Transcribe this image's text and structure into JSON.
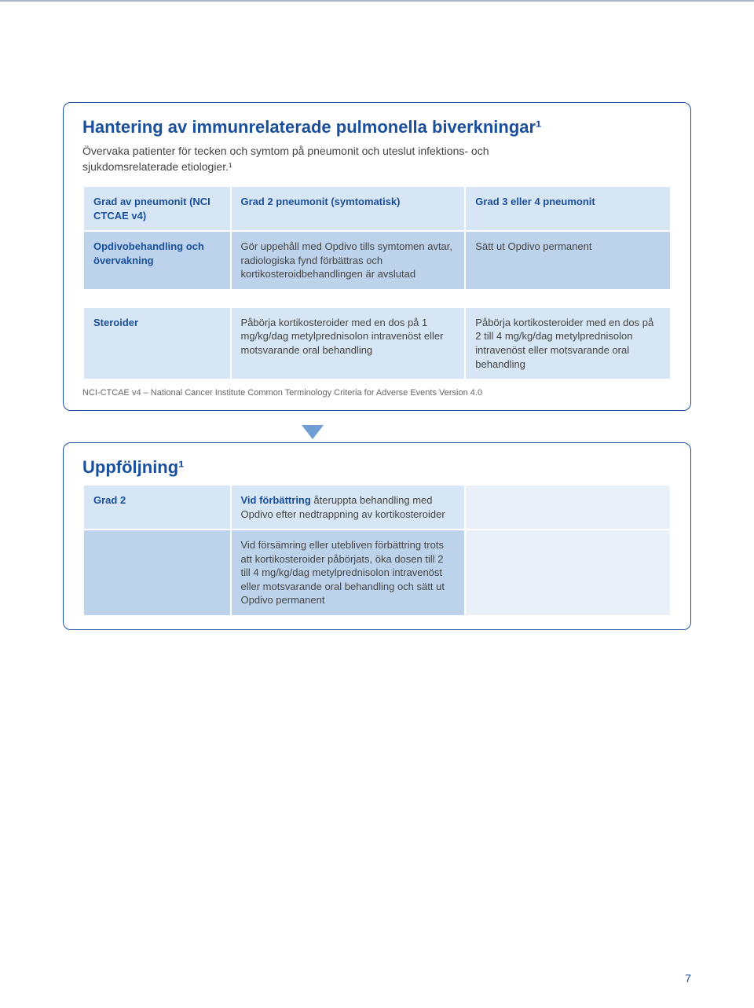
{
  "colors": {
    "accent": "#1a4f9c",
    "cell_light": "#d7e6f4",
    "cell_med": "#bcd3eb",
    "cell_empty": "#e9f0f8",
    "rule": "#a9b8c9"
  },
  "card1": {
    "title": "Hantering av immunrelaterade pulmonella biverkningar¹",
    "intro": "Övervaka patienter för tecken och symtom på pneumonit och uteslut infektions- och sjukdomsrelaterade etiologier.¹",
    "row0": {
      "label": "Grad av pneumonit (NCI CTCAE v4)",
      "mid": "Grad 2 pneumonit (symtomatisk)",
      "right": "Grad 3 eller 4 pneumonit"
    },
    "row1": {
      "label": "Opdivobehandling och övervakning",
      "mid": "Gör uppehåll med Opdivo tills symtomen avtar, radiologiska fynd förbättras och kortikosteroidbehandlingen är avslutad",
      "right": "Sätt ut Opdivo permanent"
    },
    "row2": {
      "label": "Steroider",
      "mid": "Påbörja kortikosteroider med en dos på 1 mg/kg/dag metylprednisolon intravenöst eller motsvarande oral behandling",
      "right": "Påbörja kortikosteroider med en dos på 2 till 4 mg/kg/dag metylprednisolon intravenöst eller motsvarande oral behandling"
    },
    "footnote": "NCI-CTCAE v4 – National Cancer Institute Common Terminology Criteria for Adverse Events Version 4.0"
  },
  "card2": {
    "title": "Uppföljning¹",
    "row0": {
      "label": "Grad 2",
      "mid_lead": "Vid förbättring",
      "mid_rest": " återuppta behandling med Opdivo efter nedtrappning av kortikosteroider"
    },
    "row1": {
      "mid": "Vid försämring eller utebliven förbättring trots att kortikosteroider påbörjats, öka dosen till 2 till 4 mg/kg/dag metylprednisolon intravenöst eller motsvarande oral behandling och sätt ut Opdivo permanent"
    }
  },
  "page_number": "7"
}
